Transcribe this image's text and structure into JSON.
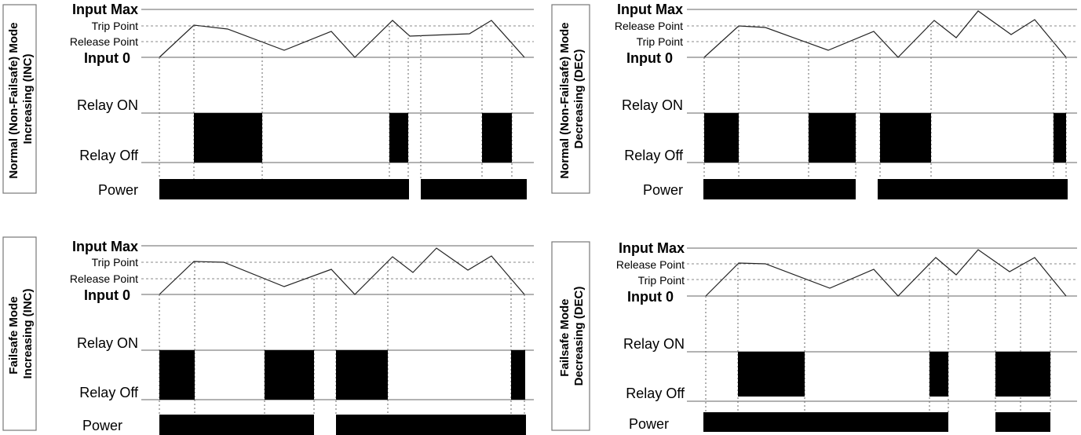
{
  "labels": {
    "input_max": "Input Max",
    "input_0": "Input 0",
    "trip_point": "Trip Point",
    "release_point": "Release Point",
    "relay_on": "Relay ON",
    "relay_off": "Relay Off",
    "power": "Power"
  },
  "panels": [
    {
      "id": "normal-inc",
      "mode_line1": "Normal (Non-Failsafe) Mode",
      "mode_line2": "Increasing (INC)",
      "upper_threshold": "Trip Point",
      "lower_threshold": "Release Point"
    },
    {
      "id": "normal-dec",
      "mode_line1": "Normal (Non-Failsafe) Mode",
      "mode_line2": "Decreasing (DEC)",
      "upper_threshold": "Release Point",
      "lower_threshold": "Trip Point"
    },
    {
      "id": "failsafe-inc",
      "mode_line1": "Failsafe Mode",
      "mode_line2": "Increasing (INC)",
      "upper_threshold": "Trip Point",
      "lower_threshold": "Release Point"
    },
    {
      "id": "failsafe-dec",
      "mode_line1": "Failsafe Mode",
      "mode_line2": "Decreasing (DEC)",
      "upper_threshold": "Release Point",
      "lower_threshold": "Trip Point"
    }
  ]
}
